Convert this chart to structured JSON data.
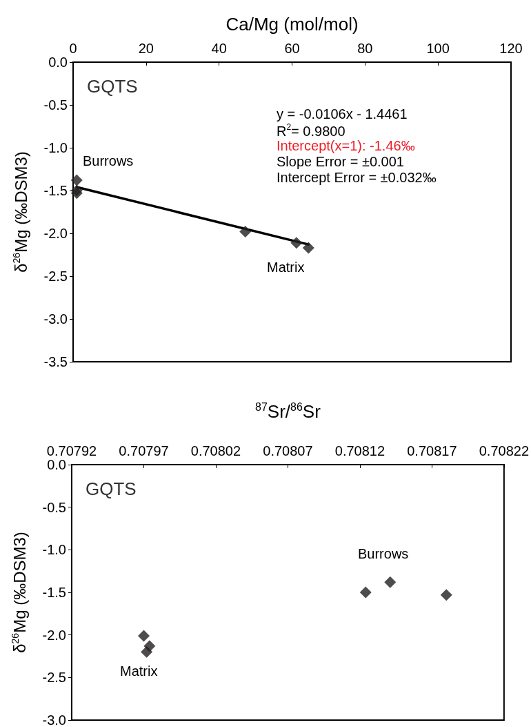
{
  "chart_data": [
    {
      "type": "scatter",
      "xlabel": "Ca/Mg (mol/mol)",
      "ylabel": "δ$^{26}$Mg (‰DSM3)",
      "xlim": [
        0,
        120
      ],
      "xticks": [
        0,
        20,
        40,
        60,
        80,
        100,
        120
      ],
      "ylim": [
        -3.5,
        0
      ],
      "yticks": [
        {
          "value": 0,
          "label": "0.0"
        },
        -0.5,
        {
          "value": -1,
          "label": "-1.0"
        },
        -1.5,
        {
          "value": -2,
          "label": "-2.0"
        },
        -2.5,
        {
          "value": -3,
          "label": "-3.0"
        },
        -3.5
      ],
      "series": [
        {
          "marker": "diamond",
          "color": "#231f20",
          "x": [
            1,
            1,
            1,
            47.2,
            61.2,
            64.5
          ],
          "values": [
            -1.38,
            -1.5,
            -1.53,
            -1.98,
            -2.11,
            -2.17
          ]
        },
        {
          "type": "line",
          "marker": "none",
          "color": "#000000",
          "x": [
            1,
            64.5
          ],
          "values": [
            -1.46,
            -2.13
          ]
        }
      ],
      "annotations": [
        "GQTS",
        "y = -0.0106x - 1.4461",
        "R$^{2}$= 0.9800",
        "Intercept(x=1): -1.46‰",
        "Slope Error = ±0.001",
        "Intercept Error = ±0.032‰",
        "Burrows",
        "Matrix"
      ]
    },
    {
      "type": "scatter",
      "xlabel": "$^{87}$Sr/$^{86}$Sr",
      "ylabel": "δ$^{26}$Mg (‰DSM3)",
      "xlim": [
        0.70792,
        0.70822
      ],
      "xticks": [
        0.70792,
        0.70797,
        0.70802,
        0.70807,
        0.70812,
        0.70817,
        0.70822
      ],
      "ylim": [
        -3,
        0
      ],
      "yticks": [
        {
          "value": 0,
          "label": "0.0"
        },
        -0.5,
        {
          "value": -1,
          "label": "-1.0"
        },
        -1.5,
        {
          "value": -2,
          "label": "-2.0"
        },
        -2.5,
        {
          "value": -3,
          "label": "-3.0"
        }
      ],
      "marker": "diamond",
      "series": [
        {
          "color": "#231f20",
          "x": [
            0.70797,
            0.707974,
            0.707972,
            0.708124,
            0.708141,
            0.70818
          ],
          "values": [
            -2.01,
            -2.13,
            -2.2,
            -1.5,
            -1.38,
            -1.53
          ]
        }
      ],
      "annotations": [
        "GQTS",
        "Burrows",
        "Matrix"
      ]
    }
  ]
}
